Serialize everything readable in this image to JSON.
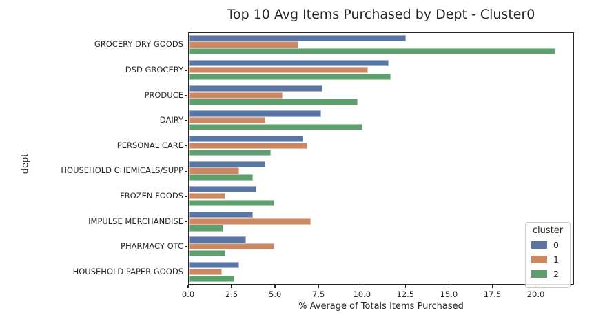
{
  "chart_data": {
    "type": "bar",
    "orientation": "horizontal",
    "title": "Top 10 Avg Items Purchased by Dept - Cluster0",
    "xlabel": "% Average of Totals Items Purchased",
    "ylabel": "dept",
    "xlim": [
      0,
      22.2
    ],
    "xticks": [
      0.0,
      2.5,
      5.0,
      7.5,
      10.0,
      12.5,
      15.0,
      17.5,
      20.0
    ],
    "grid": false,
    "categories": [
      "GROCERY DRY GOODS",
      "DSD GROCERY",
      "PRODUCE",
      "DAIRY",
      "PERSONAL CARE",
      "HOUSEHOLD CHEMICALS/SUPP",
      "FROZEN FOODS",
      "IMPULSE MERCHANDISE",
      "PHARMACY OTC",
      "HOUSEHOLD PAPER GOODS"
    ],
    "series": [
      {
        "name": "0",
        "color": "#5875A4",
        "values": [
          12.5,
          11.5,
          7.7,
          7.6,
          6.6,
          4.4,
          3.9,
          3.7,
          3.3,
          2.9
        ]
      },
      {
        "name": "1",
        "color": "#CC8863",
        "values": [
          6.3,
          10.3,
          5.4,
          4.4,
          6.8,
          2.9,
          2.1,
          7.0,
          4.9,
          1.9
        ]
      },
      {
        "name": "2",
        "color": "#5F9E6E",
        "values": [
          21.1,
          11.6,
          9.7,
          10.0,
          4.7,
          3.7,
          4.9,
          2.0,
          2.1,
          2.6
        ]
      }
    ],
    "legend": {
      "title": "cluster",
      "position": "lower right",
      "entries": [
        "0",
        "1",
        "2"
      ]
    }
  }
}
